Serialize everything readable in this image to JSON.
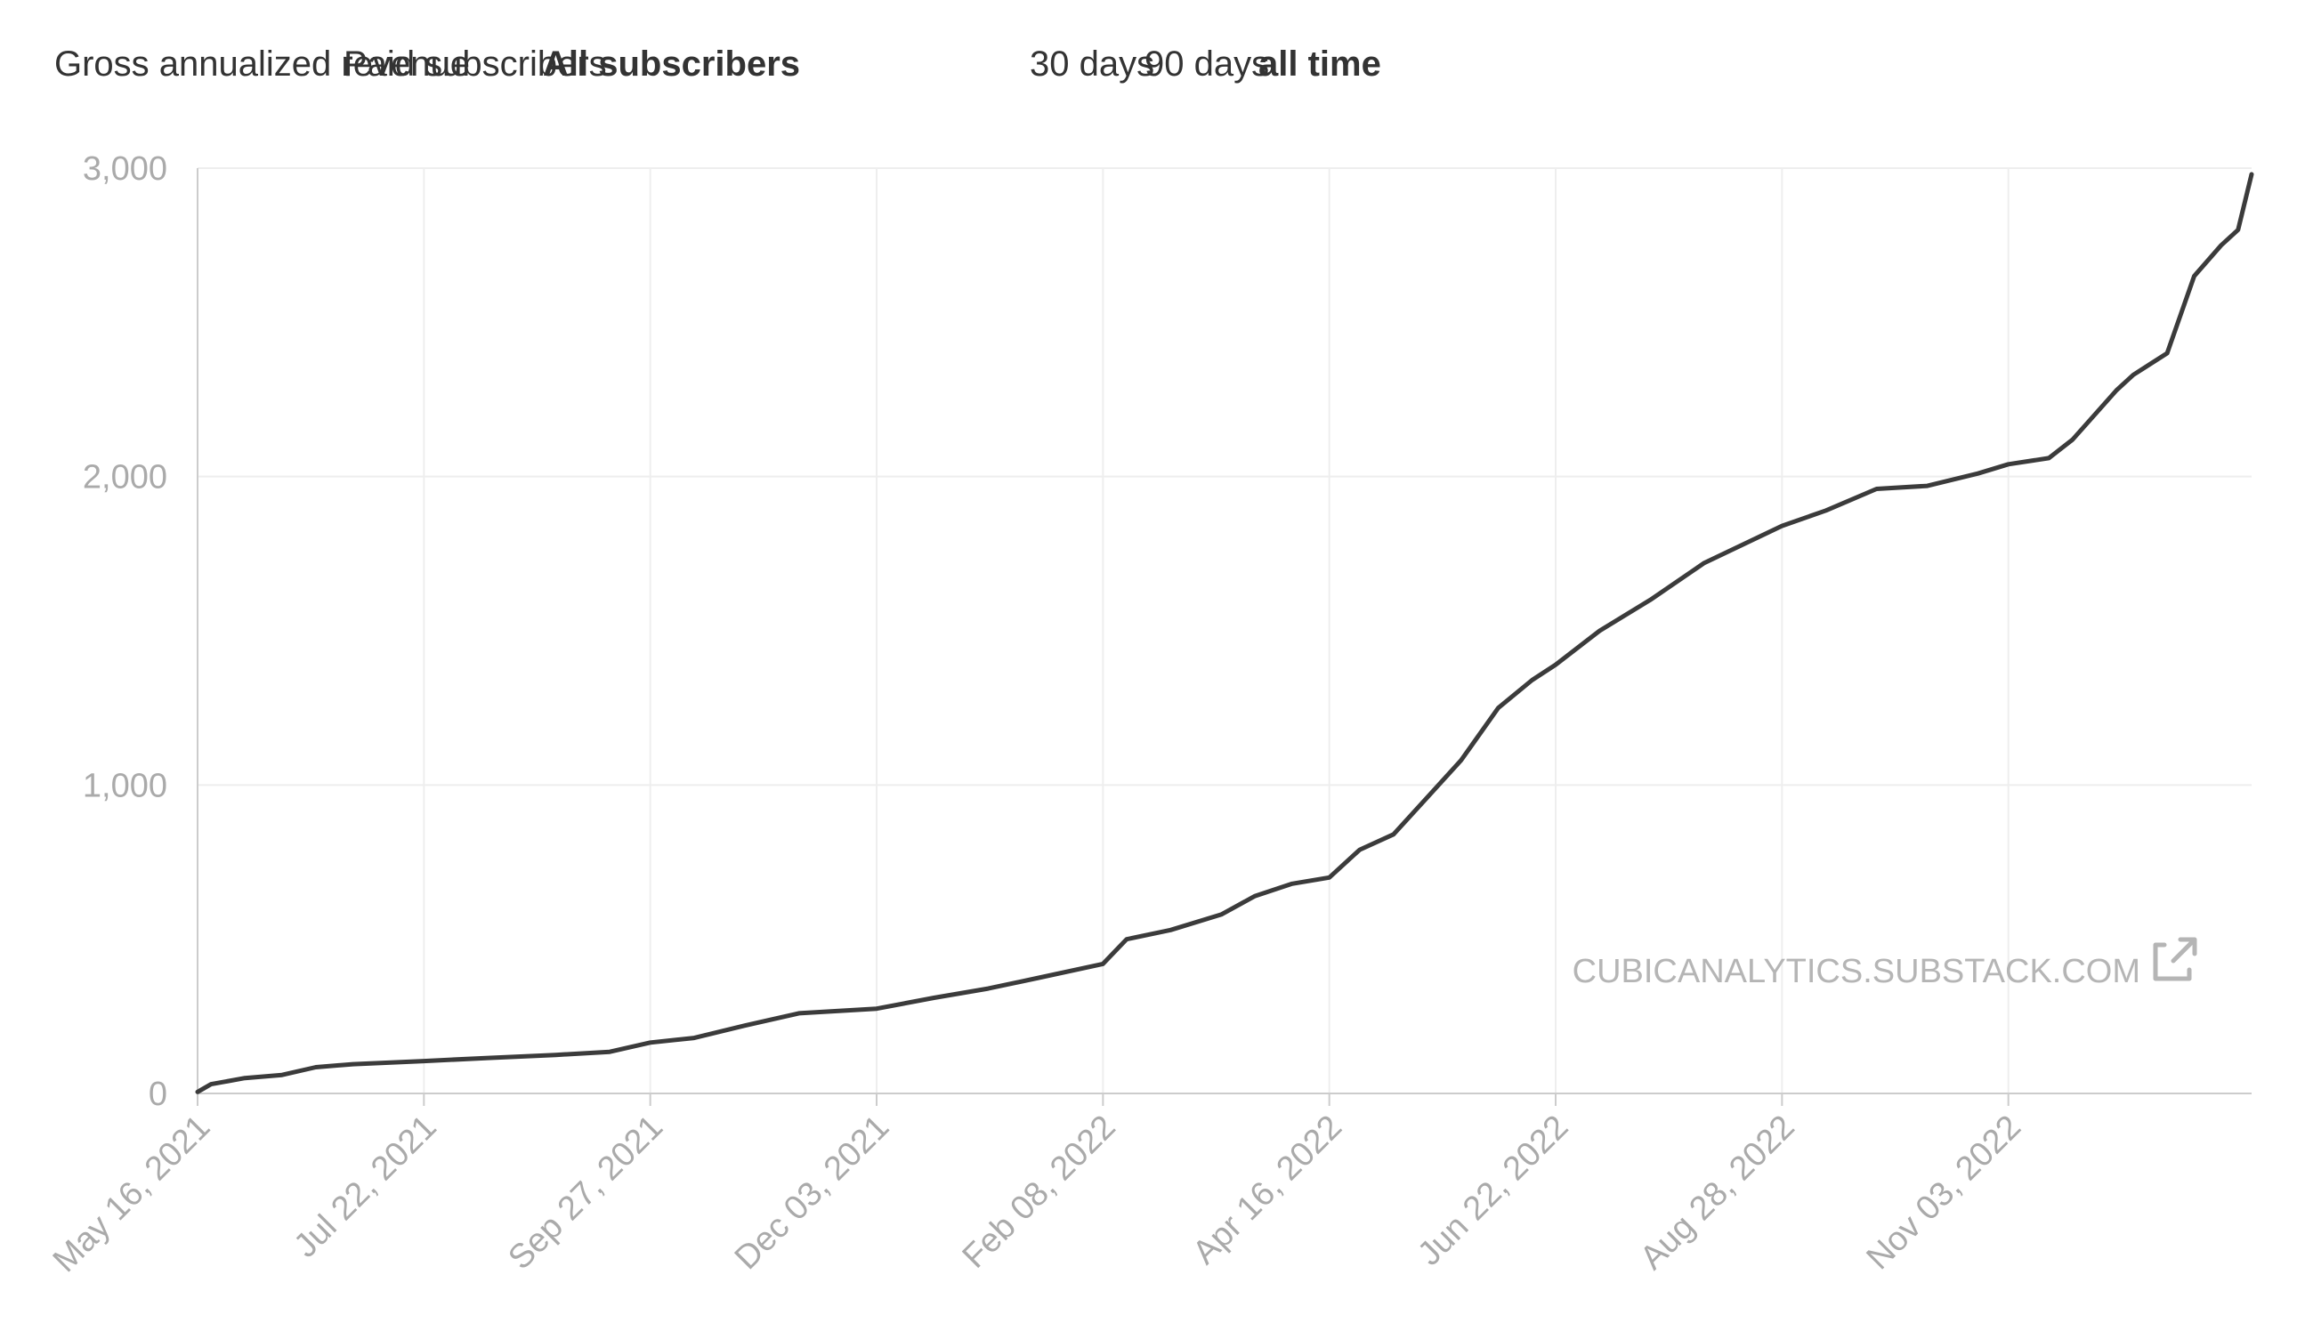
{
  "metric_tabs": [
    {
      "label": "Gross annualized revenue",
      "active": false
    },
    {
      "label": "Paid subscribers",
      "active": false
    },
    {
      "label": "All subscribers",
      "active": true
    }
  ],
  "range_tabs": [
    {
      "label": "30 days",
      "active": false
    },
    {
      "label": "90 days",
      "active": false
    },
    {
      "label": "all time",
      "active": true
    }
  ],
  "watermark": {
    "text": "CUBICANALYTICS.SUBSTACK.COM",
    "icon": "external-link-icon"
  },
  "colors": {
    "line": "#3b3b3b",
    "grid": "#eeeeee",
    "axis": "#cccccc",
    "tick_text": "#aaaaaa"
  },
  "chart_data": {
    "type": "line",
    "title": "",
    "xlabel": "",
    "ylabel": "",
    "ylim": [
      0,
      3000
    ],
    "xlim": [
      "2021-05-16",
      "2023-01-14"
    ],
    "grid": true,
    "x_ticks": [
      "May 16, 2021",
      "Jul 22, 2021",
      "Sep 27, 2021",
      "Dec 03, 2021",
      "Feb 08, 2022",
      "Apr 16, 2022",
      "Jun 22, 2022",
      "Aug 28, 2022",
      "Nov 03, 2022"
    ],
    "y_ticks": [
      "0",
      "1,000",
      "2,000",
      "3,000"
    ],
    "series": [
      {
        "name": "",
        "x": [
          "2021-05-16",
          "2021-05-20",
          "2021-05-30",
          "2021-06-10",
          "2021-06-20",
          "2021-07-01",
          "2021-07-22",
          "2021-08-10",
          "2021-08-30",
          "2021-09-15",
          "2021-09-27",
          "2021-10-10",
          "2021-10-25",
          "2021-11-10",
          "2021-12-03",
          "2021-12-20",
          "2022-01-05",
          "2022-01-20",
          "2022-02-08",
          "2022-02-15",
          "2022-02-28",
          "2022-03-15",
          "2022-03-25",
          "2022-04-05",
          "2022-04-16",
          "2022-04-25",
          "2022-05-05",
          "2022-05-15",
          "2022-05-25",
          "2022-06-05",
          "2022-06-15",
          "2022-06-22",
          "2022-07-05",
          "2022-07-20",
          "2022-08-05",
          "2022-08-28",
          "2022-09-10",
          "2022-09-25",
          "2022-10-10",
          "2022-10-25",
          "2022-11-03",
          "2022-11-15",
          "2022-11-22",
          "2022-12-05",
          "2022-12-10",
          "2022-12-20",
          "2022-12-28",
          "2023-01-05",
          "2023-01-10",
          "2023-01-14"
        ],
        "y": [
          5,
          30,
          50,
          60,
          85,
          95,
          105,
          115,
          125,
          135,
          165,
          180,
          220,
          260,
          275,
          310,
          340,
          375,
          420,
          500,
          530,
          580,
          640,
          680,
          700,
          790,
          840,
          960,
          1080,
          1250,
          1340,
          1390,
          1500,
          1600,
          1720,
          1840,
          1890,
          1960,
          1970,
          2010,
          2040,
          2060,
          2120,
          2280,
          2330,
          2400,
          2650,
          2750,
          2800,
          2980
        ]
      }
    ]
  }
}
